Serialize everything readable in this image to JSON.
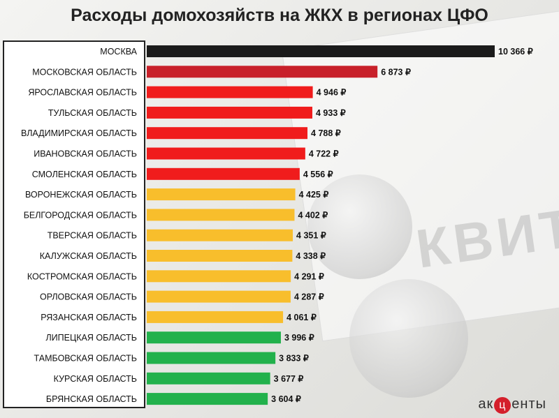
{
  "title": "Расходы домохозяйств на ЖКХ в регионах ЦФО",
  "brand": {
    "pre": "ак",
    "mid": "ц",
    "post": "енты"
  },
  "background_text": "КВИТА",
  "colors": {
    "top": "#1b1b1b",
    "red_dark": "#c8202a",
    "red": "#f01c1c",
    "yellow": "#f8be2c",
    "green": "#22b14c"
  },
  "chart_data": {
    "type": "bar",
    "orientation": "horizontal",
    "title": "Расходы домохозяйств на ЖКХ в регионах ЦФО",
    "unit": "₽",
    "categories": [
      "МОСКВА",
      "МОСКОВСКАЯ ОБЛАСТЬ",
      "ЯРОСЛАВСКАЯ ОБЛАСТЬ",
      "ТУЛЬСКАЯ ОБЛАСТЬ",
      "ВЛАДИМИРСКАЯ ОБЛАСТЬ",
      "ИВАНОВСКАЯ ОБЛАСТЬ",
      "СМОЛЕНСКАЯ ОБЛАСТЬ",
      "ВОРОНЕЖСКАЯ ОБЛАСТЬ",
      "БЕЛГОРОДСКАЯ ОБЛАСТЬ",
      "ТВЕРСКАЯ ОБЛАСТЬ",
      "КАЛУЖСКАЯ ОБЛАСТЬ",
      "КОСТРОМСКАЯ ОБЛАСТЬ",
      "ОРЛОВСКАЯ ОБЛАСТЬ",
      "РЯЗАНСКАЯ ОБЛАСТЬ",
      "ЛИПЕЦКАЯ ОБЛАСТЬ",
      "ТАМБОВСКАЯ ОБЛАСТЬ",
      "КУРСКАЯ ОБЛАСТЬ",
      "БРЯНСКАЯ ОБЛАСТЬ"
    ],
    "values": [
      10366,
      6873,
      4946,
      4933,
      4788,
      4722,
      4556,
      4425,
      4402,
      4351,
      4338,
      4291,
      4287,
      4061,
      3996,
      3833,
      3677,
      3604
    ],
    "value_labels": [
      "10 366 ₽",
      "6 873 ₽",
      "4 946 ₽",
      "4 933 ₽",
      "4 788 ₽",
      "4 722 ₽",
      "4 556 ₽",
      "4 425 ₽",
      "4 402 ₽",
      "4 351 ₽",
      "4 338 ₽",
      "4 291 ₽",
      "4 287 ₽",
      "4 061 ₽",
      "3 996 ₽",
      "3 833 ₽",
      "3 677 ₽",
      "3 604 ₽"
    ],
    "bar_colors": [
      "top",
      "red_dark",
      "red",
      "red",
      "red",
      "red",
      "red",
      "yellow",
      "yellow",
      "yellow",
      "yellow",
      "yellow",
      "yellow",
      "yellow",
      "green",
      "green",
      "green",
      "green"
    ],
    "xlim": [
      0,
      10366
    ],
    "grid": false,
    "legend": "none"
  }
}
